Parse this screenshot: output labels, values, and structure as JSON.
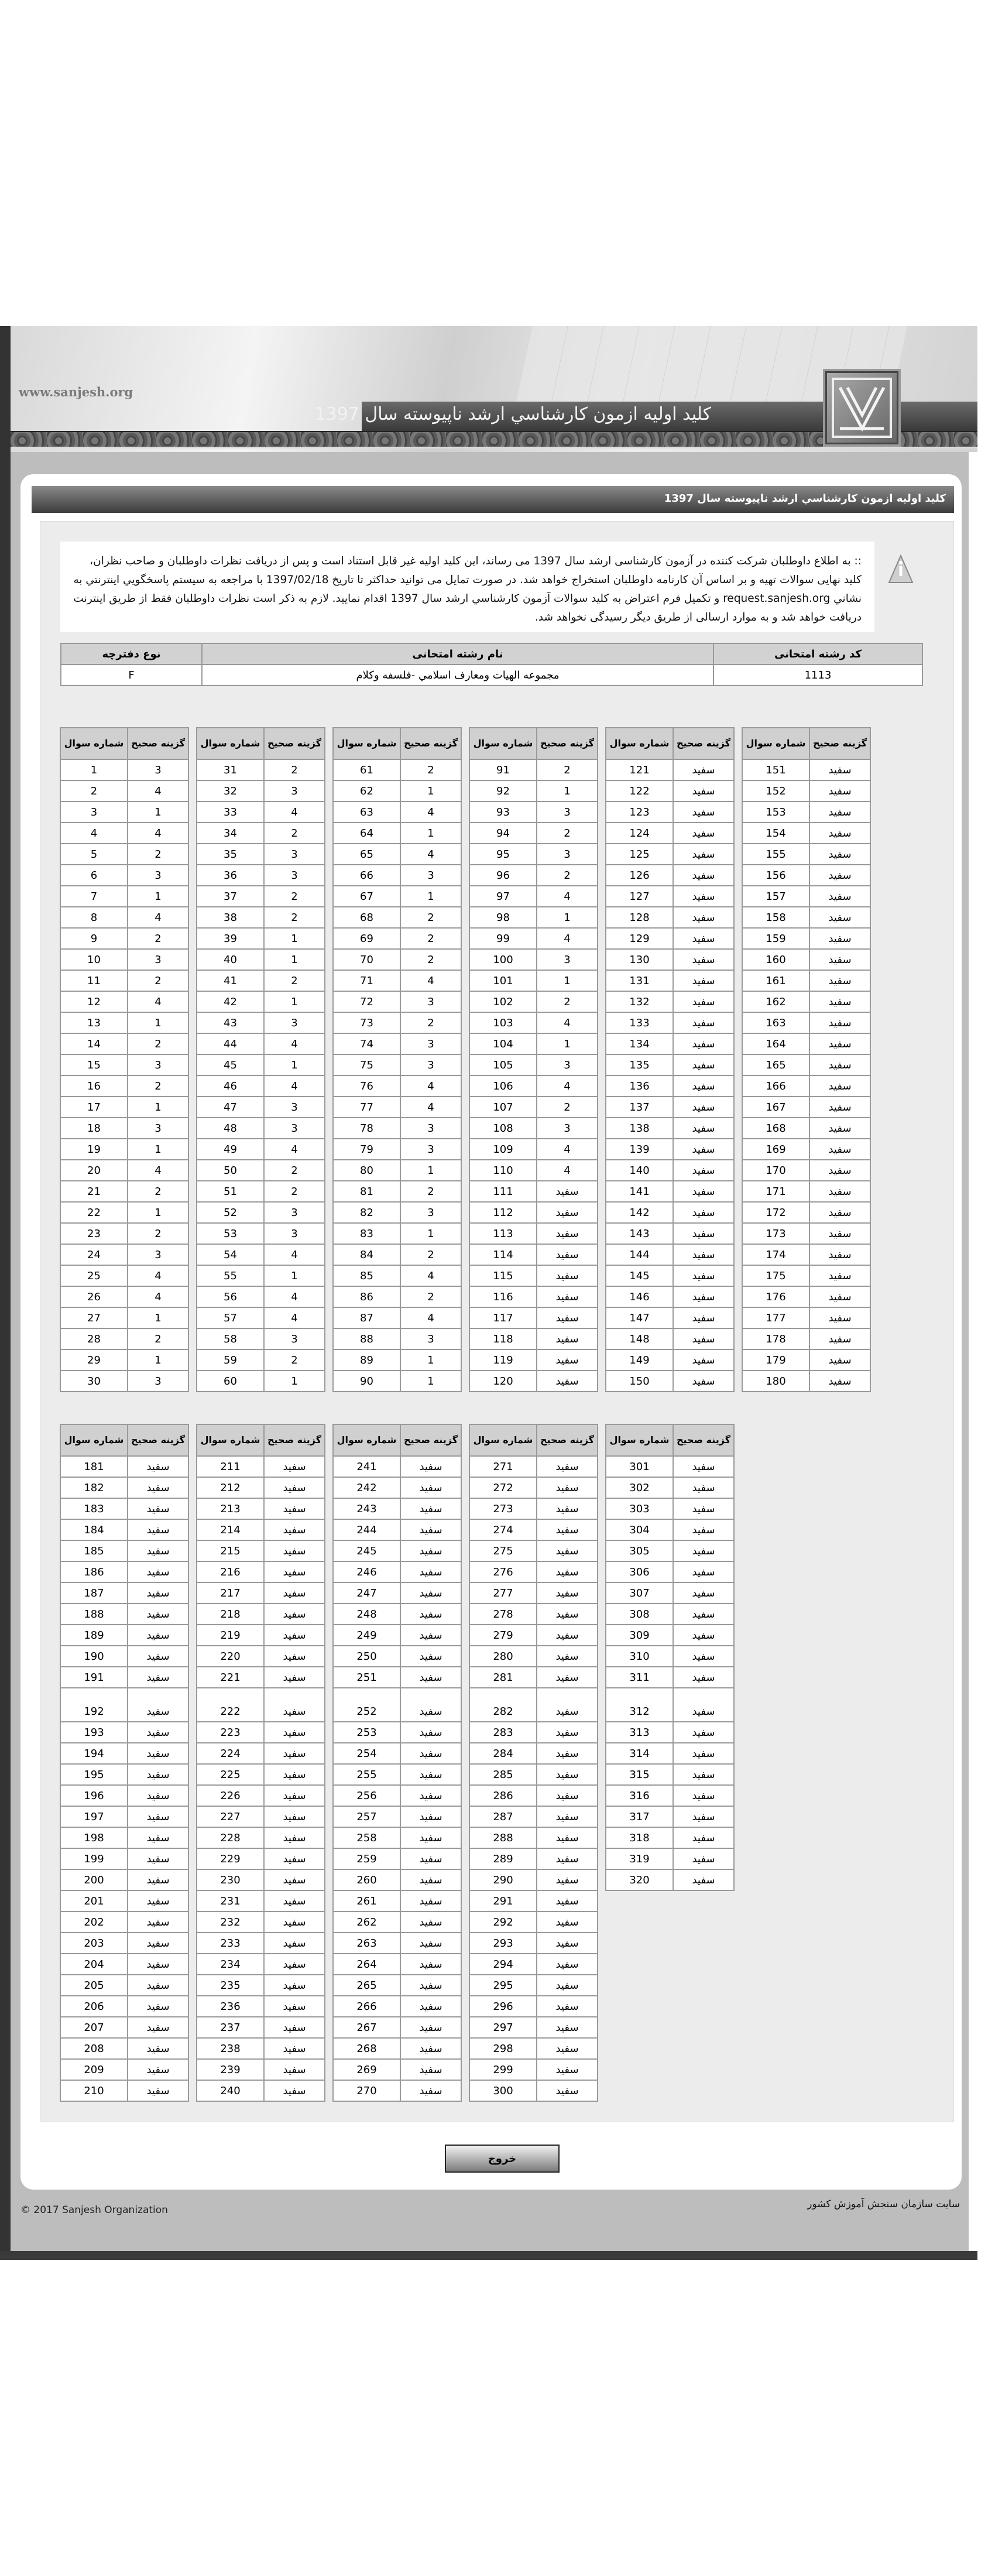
{
  "banner": {
    "site_url": "www.sanjesh.org",
    "title": "کلید اولیه ازمون کارشناسي ارشد ناپيوسته سال 1397"
  },
  "page_title": "کلید اولیه ازمون کارشناسي ارشد ناپيوسته سال 1397",
  "notice": {
    "icon": "warning-info-icon",
    "text": ":: به اطلاع داوطلبان شرکت کننده در آزمون کارشناسی ارشد سال 1397 می رساند، این کلید اولیه غیر قابل استناد است و پس از دریافت نظرات داوطلبان و صاحب نظران، کلید نهایی سوالات تهیه و بر اساس آن کارنامه داوطلبان استخراج خواهد شد. در صورت تمایل می توانید حداکثر تا تاریخ 1397/02/18 با مراجعه به سیستم پاسخگويي اينترنتي به نشاني request.sanjesh.org و تکمیل فرم اعتراض به کلید سوالات آزمون کارشناسي ارشد سال 1397 اقدام نمایید. لازم به ذکر است نظرات داوطلبان فقط از طریق اینترنت دریافت خواهد شد و به موارد ارسالی از طریق دیگر رسیدگی نخواهد شد."
  },
  "exam_info": {
    "headers": {
      "code": "کد رشته امتحانی",
      "name": "نام رشته امتحانی",
      "booklet": "نوع دفترچه"
    },
    "code": "1113",
    "name": "مجموعه الهيات ومعارف اسلامي -فلسفه وکلام",
    "booklet": "F"
  },
  "table_headers": {
    "question": "شماره سوال",
    "answer": "گزینه صحیح"
  },
  "blank_label": "سفید",
  "answer_blocks": [
    {
      "tables": [
        {
          "questions": [
            1,
            2,
            3,
            4,
            5,
            6,
            7,
            8,
            9,
            10,
            11,
            12,
            13,
            14,
            15,
            16,
            17,
            18,
            19,
            20,
            21,
            22,
            23,
            24,
            25,
            26,
            27,
            28,
            29,
            30
          ],
          "answers": [
            "3",
            "4",
            "1",
            "4",
            "2",
            "3",
            "1",
            "4",
            "2",
            "3",
            "2",
            "4",
            "1",
            "2",
            "3",
            "2",
            "1",
            "3",
            "1",
            "4",
            "2",
            "1",
            "2",
            "3",
            "4",
            "4",
            "1",
            "2",
            "1",
            "3"
          ]
        },
        {
          "questions": [
            31,
            32,
            33,
            34,
            35,
            36,
            37,
            38,
            39,
            40,
            41,
            42,
            43,
            44,
            45,
            46,
            47,
            48,
            49,
            50,
            51,
            52,
            53,
            54,
            55,
            56,
            57,
            58,
            59,
            60
          ],
          "answers": [
            "2",
            "3",
            "4",
            "2",
            "3",
            "3",
            "2",
            "2",
            "1",
            "1",
            "2",
            "1",
            "3",
            "4",
            "1",
            "4",
            "3",
            "3",
            "4",
            "2",
            "2",
            "3",
            "3",
            "4",
            "1",
            "4",
            "4",
            "3",
            "2",
            "1"
          ]
        },
        {
          "questions": [
            61,
            62,
            63,
            64,
            65,
            66,
            67,
            68,
            69,
            70,
            71,
            72,
            73,
            74,
            75,
            76,
            77,
            78,
            79,
            80,
            81,
            82,
            83,
            84,
            85,
            86,
            87,
            88,
            89,
            90
          ],
          "answers": [
            "2",
            "1",
            "4",
            "1",
            "4",
            "3",
            "1",
            "2",
            "2",
            "2",
            "4",
            "3",
            "2",
            "3",
            "3",
            "4",
            "4",
            "3",
            "3",
            "1",
            "2",
            "3",
            "1",
            "2",
            "4",
            "2",
            "4",
            "3",
            "1",
            "1"
          ]
        },
        {
          "questions": [
            91,
            92,
            93,
            94,
            95,
            96,
            97,
            98,
            99,
            100,
            101,
            102,
            103,
            104,
            105,
            106,
            107,
            108,
            109,
            110,
            111,
            112,
            113,
            114,
            115,
            116,
            117,
            118,
            119,
            120
          ],
          "answers": [
            "2",
            "1",
            "3",
            "2",
            "3",
            "2",
            "4",
            "1",
            "4",
            "3",
            "1",
            "2",
            "4",
            "1",
            "3",
            "4",
            "2",
            "3",
            "4",
            "4",
            "سفید",
            "سفید",
            "سفید",
            "سفید",
            "سفید",
            "سفید",
            "سفید",
            "سفید",
            "سفید",
            "سفید"
          ]
        },
        {
          "questions": [
            121,
            122,
            123,
            124,
            125,
            126,
            127,
            128,
            129,
            130,
            131,
            132,
            133,
            134,
            135,
            136,
            137,
            138,
            139,
            140,
            141,
            142,
            143,
            144,
            145,
            146,
            147,
            148,
            149,
            150
          ],
          "answers": [
            "سفید",
            "سفید",
            "سفید",
            "سفید",
            "سفید",
            "سفید",
            "سفید",
            "سفید",
            "سفید",
            "سفید",
            "سفید",
            "سفید",
            "سفید",
            "سفید",
            "سفید",
            "سفید",
            "سفید",
            "سفید",
            "سفید",
            "سفید",
            "سفید",
            "سفید",
            "سفید",
            "سفید",
            "سفید",
            "سفید",
            "سفید",
            "سفید",
            "سفید",
            "سفید"
          ]
        },
        {
          "questions": [
            151,
            152,
            153,
            154,
            155,
            156,
            157,
            158,
            159,
            160,
            161,
            162,
            163,
            164,
            165,
            166,
            167,
            168,
            169,
            170,
            171,
            172,
            173,
            174,
            175,
            176,
            177,
            178,
            179,
            180
          ],
          "answers": [
            "سفید",
            "سفید",
            "سفید",
            "سفید",
            "سفید",
            "سفید",
            "سفید",
            "سفید",
            "سفید",
            "سفید",
            "سفید",
            "سفید",
            "سفید",
            "سفید",
            "سفید",
            "سفید",
            "سفید",
            "سفید",
            "سفید",
            "سفید",
            "سفید",
            "سفید",
            "سفید",
            "سفید",
            "سفید",
            "سفید",
            "سفید",
            "سفید",
            "سفید",
            "سفید"
          ]
        }
      ]
    },
    {
      "tables": [
        {
          "questions": [
            181,
            182,
            183,
            184,
            185,
            186,
            187,
            188,
            189,
            190,
            191,
            192,
            193,
            194,
            195,
            196,
            197,
            198,
            199,
            200,
            201,
            202,
            203,
            204,
            205,
            206,
            207,
            208,
            209,
            210
          ],
          "answers": [
            "سفید",
            "سفید",
            "سفید",
            "سفید",
            "سفید",
            "سفید",
            "سفید",
            "سفید",
            "سفید",
            "سفید",
            "سفید",
            "سفید",
            "سفید",
            "سفید",
            "سفید",
            "سفید",
            "سفید",
            "سفید",
            "سفید",
            "سفید",
            "سفید",
            "سفید",
            "سفید",
            "سفید",
            "سفید",
            "سفید",
            "سفید",
            "سفید",
            "سفید",
            "سفید"
          ]
        },
        {
          "questions": [
            211,
            212,
            213,
            214,
            215,
            216,
            217,
            218,
            219,
            220,
            221,
            222,
            223,
            224,
            225,
            226,
            227,
            228,
            229,
            230,
            231,
            232,
            233,
            234,
            235,
            236,
            237,
            238,
            239,
            240
          ],
          "answers": [
            "سفید",
            "سفید",
            "سفید",
            "سفید",
            "سفید",
            "سفید",
            "سفید",
            "سفید",
            "سفید",
            "سفید",
            "سفید",
            "سفید",
            "سفید",
            "سفید",
            "سفید",
            "سفید",
            "سفید",
            "سفید",
            "سفید",
            "سفید",
            "سفید",
            "سفید",
            "سفید",
            "سفید",
            "سفید",
            "سفید",
            "سفید",
            "سفید",
            "سفید",
            "سفید"
          ]
        },
        {
          "questions": [
            241,
            242,
            243,
            244,
            245,
            246,
            247,
            248,
            249,
            250,
            251,
            252,
            253,
            254,
            255,
            256,
            257,
            258,
            259,
            260,
            261,
            262,
            263,
            264,
            265,
            266,
            267,
            268,
            269,
            270
          ],
          "answers": [
            "سفید",
            "سفید",
            "سفید",
            "سفید",
            "سفید",
            "سفید",
            "سفید",
            "سفید",
            "سفید",
            "سفید",
            "سفید",
            "سفید",
            "سفید",
            "سفید",
            "سفید",
            "سفید",
            "سفید",
            "سفید",
            "سفید",
            "سفید",
            "سفید",
            "سفید",
            "سفید",
            "سفید",
            "سفید",
            "سفید",
            "سفید",
            "سفید",
            "سفید",
            "سفید"
          ]
        },
        {
          "questions": [
            271,
            272,
            273,
            274,
            275,
            276,
            277,
            278,
            279,
            280,
            281,
            282,
            283,
            284,
            285,
            286,
            287,
            288,
            289,
            290,
            291,
            292,
            293,
            294,
            295,
            296,
            297,
            298,
            299,
            300
          ],
          "answers": [
            "سفید",
            "سفید",
            "سفید",
            "سفید",
            "سفید",
            "سفید",
            "سفید",
            "سفید",
            "سفید",
            "سفید",
            "سفید",
            "سفید",
            "سفید",
            "سفید",
            "سفید",
            "سفید",
            "سفید",
            "سفید",
            "سفید",
            "سفید",
            "سفید",
            "سفید",
            "سفید",
            "سفید",
            "سفید",
            "سفید",
            "سفید",
            "سفید",
            "سفید",
            "سفید"
          ]
        },
        {
          "questions": [
            301,
            302,
            303,
            304,
            305,
            306,
            307,
            308,
            309,
            310,
            311,
            312,
            313,
            314,
            315,
            316,
            317,
            318,
            319,
            320
          ],
          "answers": [
            "سفید",
            "سفید",
            "سفید",
            "سفید",
            "سفید",
            "سفید",
            "سفید",
            "سفید",
            "سفید",
            "سفید",
            "سفید",
            "سفید",
            "سفید",
            "سفید",
            "سفید",
            "سفید",
            "سفید",
            "سفید",
            "سفید",
            "سفید"
          ]
        }
      ]
    }
  ],
  "exit_button": "خروج",
  "footer": {
    "copyright": "© 2017 Sanjesh Organization",
    "org_link": "سایت سازمان سنجش آموزش کشور"
  },
  "colors": {
    "dark": "#333333",
    "gray_bg": "#bdbdbd",
    "panel": "#ececec",
    "header_cell": "#d0d0d0"
  }
}
